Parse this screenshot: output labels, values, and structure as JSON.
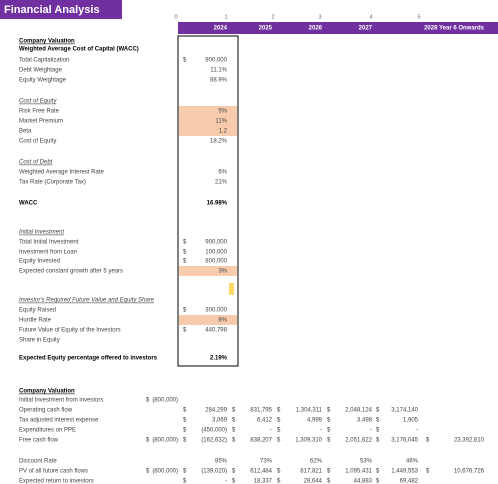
{
  "header": {
    "title": "Financial Analysis",
    "column_index": [
      "0",
      "1",
      "2",
      "3",
      "4",
      "5"
    ],
    "years": [
      "2024",
      "2025",
      "2026",
      "2027",
      "2028 Year 6 Onwards"
    ]
  },
  "rows": [
    {
      "label": "Company Valuation",
      "style": "bold-underline",
      "cells": [
        null,
        null,
        null,
        null,
        null,
        null,
        null
      ]
    },
    {
      "label": "Weighted Average Cost of Capital (WACC)",
      "style": "bold",
      "cells": [
        null,
        null,
        null,
        null,
        null,
        null,
        null
      ]
    },
    {
      "label": "Total Capitalization",
      "cells": [
        null,
        [
          "$",
          "900,000"
        ],
        null,
        null,
        null,
        null,
        null
      ]
    },
    {
      "label": "Debt Weightage",
      "cells": [
        null,
        "11.1%",
        null,
        null,
        null,
        null,
        null
      ]
    },
    {
      "label": "Equity Weightage",
      "cells": [
        null,
        "88.9%",
        null,
        null,
        null,
        null,
        null
      ]
    },
    {
      "label": "Cost of Equity",
      "style": "italic-underline",
      "cells": [
        null,
        null,
        null,
        null,
        null,
        null,
        null
      ]
    },
    {
      "label": "Risk Free Rate",
      "highlight": true,
      "cells": [
        null,
        "5%",
        null,
        null,
        null,
        null,
        null
      ]
    },
    {
      "label": "Market Premium",
      "highlight": true,
      "cells": [
        null,
        "11%",
        null,
        null,
        null,
        null,
        null
      ]
    },
    {
      "label": "Beta",
      "highlight": true,
      "cells": [
        null,
        "1.2",
        null,
        null,
        null,
        null,
        null
      ]
    },
    {
      "label": "Cost of Equity",
      "cells": [
        null,
        "18.2%",
        null,
        null,
        null,
        null,
        null
      ]
    },
    {
      "label": "Cost of Debt",
      "style": "italic-underline",
      "cells": [
        null,
        null,
        null,
        null,
        null,
        null,
        null
      ]
    },
    {
      "label": "Weighted Average Interest Rate",
      "cells": [
        null,
        "6%",
        null,
        null,
        null,
        null,
        null
      ]
    },
    {
      "label": "Tax Rate (Corporate Tax)",
      "cells": [
        null,
        "21%",
        null,
        null,
        null,
        null,
        null
      ]
    },
    {
      "label": "WACC",
      "style": "bold",
      "cells": [
        null,
        "16.98%",
        null,
        null,
        null,
        null,
        null
      ]
    },
    {
      "label": "Initial Investment",
      "style": "italic-underline",
      "cells": [
        null,
        null,
        null,
        null,
        null,
        null,
        null
      ]
    },
    {
      "label": "Total Initial Investment",
      "cells": [
        null,
        [
          "$",
          "900,000"
        ],
        null,
        null,
        null,
        null,
        null
      ]
    },
    {
      "label": "Investment from Loan",
      "cells": [
        null,
        [
          "$",
          "100,000"
        ],
        null,
        null,
        null,
        null,
        null
      ]
    },
    {
      "label": "Equity Invested",
      "cells": [
        null,
        [
          "$",
          "800,000"
        ],
        null,
        null,
        null,
        null,
        null
      ]
    },
    {
      "label": "Expected constant growth after 5 years",
      "highlight": true,
      "cells": [
        null,
        "3%",
        null,
        null,
        null,
        null,
        null
      ]
    },
    {
      "label": "Investor's Required Future Value and Equity Share",
      "style": "italic-underline",
      "cells": [
        null,
        null,
        null,
        null,
        null,
        null,
        null
      ]
    },
    {
      "label": "Equity Raised",
      "cells": [
        null,
        [
          "$",
          "300,000"
        ],
        null,
        null,
        null,
        null,
        null
      ]
    },
    {
      "label": "Hurdle Rate",
      "highlight": true,
      "cells": [
        null,
        "8%",
        null,
        null,
        null,
        null,
        null
      ]
    },
    {
      "label": "Future Value of Equity of the Investors",
      "cells": [
        null,
        [
          "$",
          "440,798"
        ],
        null,
        null,
        null,
        null,
        null
      ]
    },
    {
      "label": "Share in Equity",
      "cells": [
        null,
        null,
        null,
        null,
        null,
        null,
        null
      ]
    },
    {
      "label": "Expected Equity percentage offered to investors",
      "style": "bold",
      "cells": [
        null,
        "2.19%",
        null,
        null,
        null,
        null,
        null
      ]
    },
    {
      "label": "Company Valuation",
      "style": "bold-underline",
      "cells": [
        null,
        null,
        null,
        null,
        null,
        null,
        null
      ]
    },
    {
      "label": "Initial Investment from investors",
      "cells": [
        [
          "$",
          "(800,000)"
        ],
        null,
        null,
        null,
        null,
        null,
        null
      ]
    },
    {
      "label": "Operating cash flow",
      "cells": [
        null,
        [
          "$",
          "284,299"
        ],
        [
          "$",
          "831,795"
        ],
        [
          "$",
          "1,304,311"
        ],
        [
          "$",
          "2,048,124"
        ],
        [
          "$",
          "3,174,140"
        ],
        null
      ]
    },
    {
      "label": "Tax adjusted interest expense",
      "cells": [
        null,
        [
          "$",
          "3,069"
        ],
        [
          "$",
          "6,412"
        ],
        [
          "$",
          "4,999"
        ],
        [
          "$",
          "3,498"
        ],
        [
          "$",
          "1,905"
        ],
        null
      ]
    },
    {
      "label": "Expenditures on PPE",
      "cells": [
        null,
        [
          "$",
          "(450,000)"
        ],
        [
          "$",
          "-"
        ],
        [
          "$",
          "-"
        ],
        [
          "$",
          "-"
        ],
        [
          "$",
          "-"
        ],
        null
      ]
    },
    {
      "label": "Free cash flow",
      "cells": [
        [
          "$",
          "(800,000)"
        ],
        [
          "$",
          "(162,632)"
        ],
        [
          "$",
          "838,207"
        ],
        [
          "$",
          "1,309,310"
        ],
        [
          "$",
          "2,051,622"
        ],
        [
          "$",
          "3,176,045"
        ],
        [
          "$",
          "23,392,610"
        ]
      ]
    },
    {
      "label": "Discount Rate",
      "cells": [
        null,
        "85%",
        "73%",
        "62%",
        "53%",
        "46%",
        null
      ]
    },
    {
      "label": "PV of all future cash flows",
      "cells": [
        [
          "$",
          "(800,000)"
        ],
        [
          "$",
          "(139,020)"
        ],
        [
          "$",
          "612,484"
        ],
        [
          "$",
          "817,821"
        ],
        [
          "$",
          "1,095,431"
        ],
        [
          "$",
          "1,449,553"
        ],
        [
          "$",
          "10,676,726"
        ]
      ]
    },
    {
      "label": "Expected return to investors",
      "cells": [
        null,
        [
          "$",
          "-"
        ],
        [
          "$",
          "18,337"
        ],
        [
          "$",
          "28,644"
        ],
        [
          "$",
          "44,883"
        ],
        [
          "$",
          "69,482"
        ],
        null
      ]
    }
  ]
}
